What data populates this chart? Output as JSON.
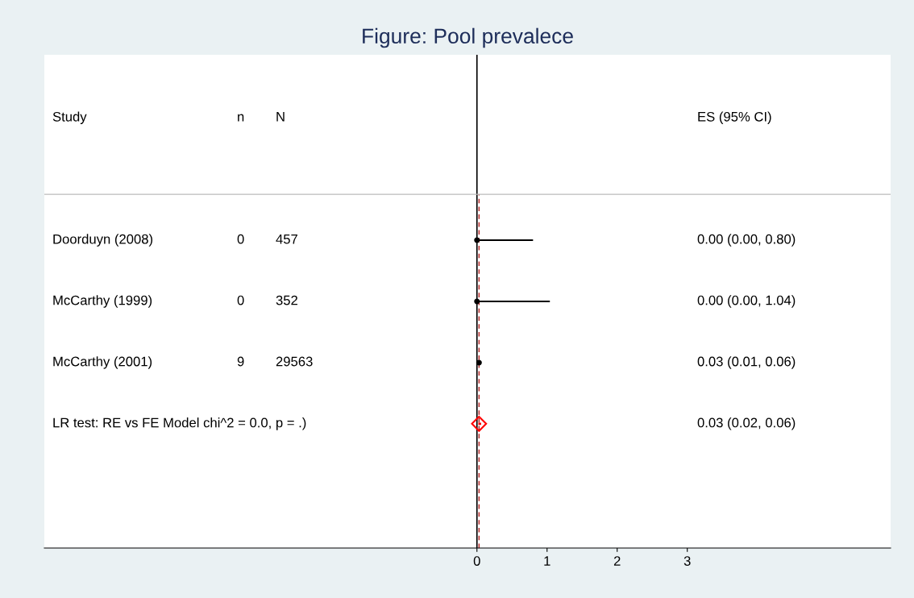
{
  "chart_data": {
    "type": "scatter",
    "orientation": "horizontal",
    "title": "Figure: Pool prevalece",
    "categories": [
      "Doorduyn (2008)",
      "McCarthy (1999)",
      "McCarthy (2001)",
      "LR test: RE vs FE Model chi^2 = 0.0, p = .)"
    ],
    "series": [
      {
        "color": "#000000",
        "marker": "circle",
        "values": [
          0.0,
          0.0,
          0.03,
          null
        ],
        "errors": [
          [
            0.0,
            0.8
          ],
          [
            0.0,
            1.04
          ],
          [
            0.01,
            0.06
          ],
          null
        ]
      },
      {
        "color": "#ff0000",
        "marker": "diamond",
        "values": [
          null,
          null,
          null,
          0.03
        ],
        "errors": [
          null,
          null,
          null,
          [
            0.02,
            0.06
          ]
        ]
      }
    ],
    "xlim": [
      -6.17,
      5.9
    ],
    "xticks": [
      0,
      1,
      2,
      3
    ],
    "ref_lines": [
      {
        "axis": "x",
        "value": 0,
        "color": "#000000",
        "line_style": "solid"
      },
      {
        "axis": "x",
        "value": 0.03,
        "color": "#b22222",
        "line_style": "dashed"
      }
    ],
    "annotations": [
      "Study",
      "n",
      "N",
      "ES (95% CI)",
      "0",
      "457",
      "0.00 (0.00, 0.80)",
      "0",
      "352",
      "0.00 (0.00, 1.04)",
      "9",
      "29563",
      "0.03 (0.01, 0.06)",
      "0.03 (0.02, 0.06)"
    ],
    "grid": false
  }
}
